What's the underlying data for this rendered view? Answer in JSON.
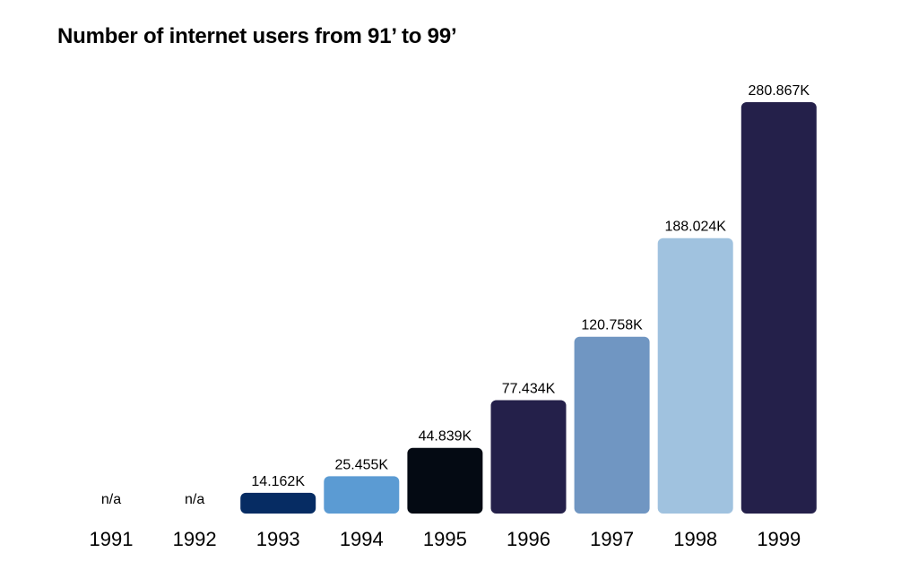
{
  "title": "Number of internet users from 91’ to 99’",
  "chart_data": {
    "type": "bar",
    "title": "Number of internet users from 91’ to 99’",
    "xlabel": "",
    "ylabel": "",
    "ylim": [
      0,
      280.867
    ],
    "grid": false,
    "categories": [
      "1991",
      "1992",
      "1993",
      "1994",
      "1995",
      "1996",
      "1997",
      "1998",
      "1999"
    ],
    "values": [
      null,
      null,
      14.162,
      25.455,
      44.839,
      77.434,
      120.758,
      188.024,
      280.867
    ],
    "labels": [
      "n/a",
      "n/a",
      "14.162K",
      "25.455K",
      "44.839K",
      "77.434K",
      "120.758K",
      "188.024K",
      "280.867K"
    ],
    "colors": [
      "#24204a",
      "#24204a",
      "#062c63",
      "#5b9bd3",
      "#040a13",
      "#24204a",
      "#7096c2",
      "#a0c2df",
      "#24204a"
    ]
  }
}
